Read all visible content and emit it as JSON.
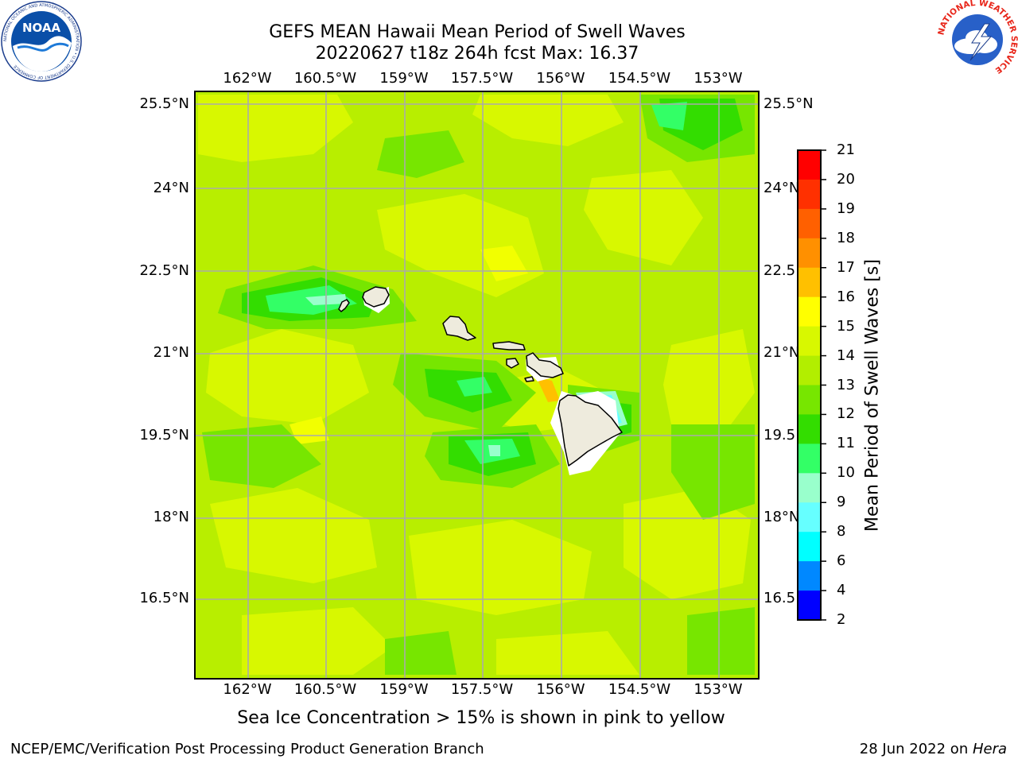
{
  "title": {
    "line1": "GEFS MEAN Hawaii Mean Period of Swell Waves",
    "line2": "20220627 t18z 264h fcst   Max: 16.37"
  },
  "map": {
    "lon_labels": [
      "162°W",
      "160.5°W",
      "159°W",
      "157.5°W",
      "156°W",
      "154.5°W",
      "153°W"
    ],
    "lat_labels_left": [
      "25.5°N",
      "24°N",
      "22.5°N",
      "21°N",
      "19.5°N",
      "18°N",
      "16.5°N"
    ],
    "lat_labels_right": [
      "25.5°N",
      "24°N",
      "22.5",
      "21°N",
      "19.5",
      "18°N",
      "16.5"
    ],
    "ocean_color": "#b8ee00",
    "land_color": "#eeebdd",
    "grid_color": "#aaaaaa"
  },
  "colorbar": {
    "label": "Mean Period of Swell Waves [s]",
    "ticks": [
      "21",
      "20",
      "19",
      "18",
      "17",
      "16",
      "15",
      "14",
      "13",
      "12",
      "11",
      "10",
      "9",
      "8",
      "6",
      "4",
      "2"
    ],
    "colors": [
      "#ff0000",
      "#ff3000",
      "#ff6000",
      "#ff9000",
      "#ffc000",
      "#ffff00",
      "#d8f800",
      "#b2ee00",
      "#77e600",
      "#33dd00",
      "#33ff66",
      "#99ffcc",
      "#66ffff",
      "#00ffff",
      "#0088ff",
      "#0000ff"
    ]
  },
  "note": "Sea Ice Concentration > 15% is shown in pink to yellow",
  "footer": {
    "left": "NCEP/EMC/Verification Post Processing Product Generation Branch",
    "right_date": "28 Jun 2022 on ",
    "right_host": "Hera"
  },
  "logos": {
    "noaa_text": "NOAA",
    "noaa_ring_text": "NATIONAL OCEANIC AND ATMOSPHERIC ADMINISTRATION • U.S. DEPARTMENT OF COMMERCE",
    "nws_ring_text": "NATIONAL WEATHER SERVICE"
  }
}
